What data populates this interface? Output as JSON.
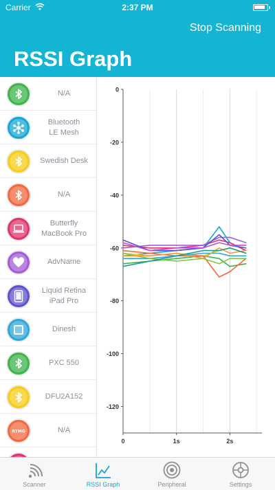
{
  "status_bar": {
    "carrier": "Carrier",
    "time": "2:37 PM"
  },
  "header": {
    "stop_label": "Stop Scanning",
    "title": "RSSI Graph",
    "background": "#14b4d3"
  },
  "devices": [
    {
      "label": "N/A",
      "color": "#3db34a",
      "icon": "bluetooth-icon"
    },
    {
      "label": "Bluetooth\nLE Mesh",
      "color": "#14a7d4",
      "icon": "mesh-icon"
    },
    {
      "label": "Swedish Desk",
      "color": "#f6cc15",
      "icon": "bluetooth-icon"
    },
    {
      "label": "N/A",
      "color": "#f2683f",
      "icon": "bluetooth-icon"
    },
    {
      "label": "Butterfly\nMacBook Pro",
      "color": "#e0356b",
      "icon": "laptop-icon"
    },
    {
      "label": "AdvName",
      "color": "#a45bd7",
      "icon": "heart-icon"
    },
    {
      "label": "Liquid Retina\niPad Pro",
      "color": "#5b52cc",
      "icon": "tablet-icon"
    },
    {
      "label": "Dinesh",
      "color": "#2fa7d9",
      "icon": "square-icon"
    },
    {
      "label": "PXC 550",
      "color": "#3db34a",
      "icon": "bluetooth-icon"
    },
    {
      "label": "DFU2A152",
      "color": "#f6cc15",
      "icon": "bluetooth-icon"
    },
    {
      "label": "N/A",
      "color": "#f2683f",
      "icon": "rtmg-logo"
    },
    {
      "label": "",
      "color": "#e0356b",
      "icon": "bluetooth-icon"
    }
  ],
  "chart_data": {
    "type": "line",
    "xlabel": "",
    "ylabel": "",
    "xlim": [
      0,
      2.6
    ],
    "ylim": [
      -130,
      0
    ],
    "x_ticks": [
      {
        "value": 0,
        "label": "0"
      },
      {
        "value": 1,
        "label": "1s"
      },
      {
        "value": 2,
        "label": "2s"
      }
    ],
    "y_ticks": [
      {
        "value": 0,
        "label": "0"
      },
      {
        "value": -20,
        "label": "-20"
      },
      {
        "value": -40,
        "label": "-40"
      },
      {
        "value": -60,
        "label": "-60"
      },
      {
        "value": -80,
        "label": "-80"
      },
      {
        "value": -100,
        "label": "-100"
      },
      {
        "value": -120,
        "label": "-120"
      }
    ],
    "grid": true,
    "x": [
      0,
      0.5,
      1,
      1.5,
      1.8,
      2.0,
      2.3
    ],
    "series": [
      {
        "color": "#3db34a",
        "values": [
          -66,
          -65,
          -64,
          -63,
          -64,
          -67,
          -66
        ]
      },
      {
        "color": "#14a7d4",
        "values": [
          -63,
          -62,
          -61,
          -60,
          -52,
          -58,
          -61
        ]
      },
      {
        "color": "#f6cc15",
        "values": [
          -62,
          -63,
          -62,
          -63,
          -61,
          -60,
          -62
        ]
      },
      {
        "color": "#f2683f",
        "values": [
          -61,
          -62,
          -63,
          -63,
          -71,
          -69,
          -64
        ]
      },
      {
        "color": "#e0356b",
        "values": [
          -59,
          -60,
          -60,
          -59,
          -57,
          -58,
          -61
        ]
      },
      {
        "color": "#a45bd7",
        "values": [
          -60,
          -59,
          -59,
          -59,
          -56,
          -56,
          -58
        ]
      },
      {
        "color": "#5b52cc",
        "values": [
          -57,
          -61,
          -61,
          -60,
          -55,
          -59,
          -60
        ]
      },
      {
        "color": "#2fa7d9",
        "values": [
          -64,
          -64,
          -63,
          -62,
          -62,
          -63,
          -63
        ]
      },
      {
        "color": "#7ac943",
        "values": [
          -62,
          -64,
          -65,
          -64,
          -66,
          -64,
          -64
        ]
      },
      {
        "color": "#f29a3a",
        "values": [
          -63,
          -63,
          -62,
          -64,
          -60,
          -62,
          -61
        ]
      },
      {
        "color": "#1e9c8f",
        "values": [
          -67,
          -65,
          -63,
          -61,
          -61,
          -60,
          -62
        ]
      },
      {
        "color": "#c04dd8",
        "values": [
          -58,
          -61,
          -60,
          -60,
          -58,
          -59,
          -59
        ]
      }
    ]
  },
  "tabs": [
    {
      "label": "Scanner",
      "icon": "scanner-icon",
      "active": false
    },
    {
      "label": "RSSI Graph",
      "icon": "graph-icon",
      "active": true
    },
    {
      "label": "Peripheral",
      "icon": "peripheral-icon",
      "active": false
    },
    {
      "label": "Settings",
      "icon": "settings-icon",
      "active": false
    }
  ],
  "colors": {
    "active_tab": "#14a7d4",
    "inactive_tab": "#8e8e93"
  }
}
